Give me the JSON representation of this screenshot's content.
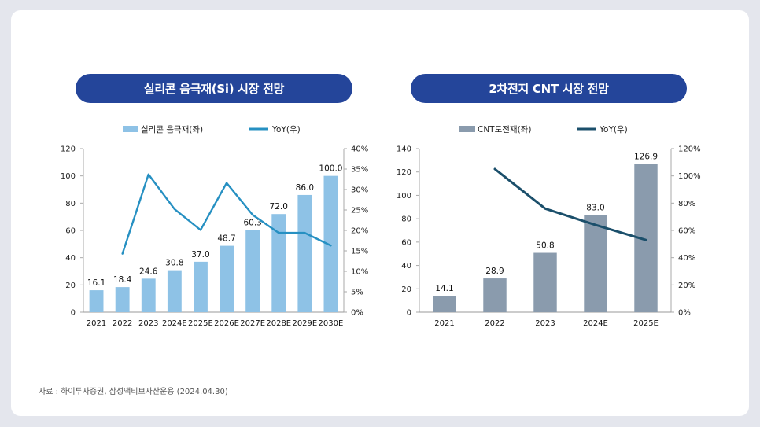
{
  "titles": {
    "left": "실리콘 음극재(Si) 시장 전망",
    "right": "2차전지 CNT 시장 전망"
  },
  "source": "자료 : 하이투자증권, 삼성액티브자산운용 (2024.04.30)",
  "colors": {
    "pill": "#24459a",
    "left_bar": "#8ec2e6",
    "left_line": "#2690c2",
    "right_bar": "#8a9bad",
    "right_line": "#1b4f6b"
  },
  "chart_data": [
    {
      "type": "bar",
      "title": "실리콘 음극재(Si) 시장 전망",
      "categories": [
        "2021",
        "2022",
        "2023",
        "2024E",
        "2025E",
        "2026E",
        "2027E",
        "2028E",
        "2029E",
        "2030E"
      ],
      "series": [
        {
          "name": "실리콘 음극재(좌)",
          "type": "bar",
          "axis": "left",
          "values": [
            16.1,
            18.4,
            24.6,
            30.8,
            37.0,
            48.7,
            60.3,
            72.0,
            86.0,
            100.0
          ],
          "labels": [
            "16.1",
            "18.4",
            "24.6",
            "30.8",
            "37.0",
            "48.7",
            "60.3",
            "72.0",
            "86.0",
            "100.0"
          ]
        },
        {
          "name": "YoY(우)",
          "type": "line",
          "axis": "right",
          "values": [
            null,
            14.3,
            33.7,
            25.2,
            20.1,
            31.6,
            23.8,
            19.4,
            19.4,
            16.3
          ]
        }
      ],
      "y_left": {
        "min": 0,
        "max": 120,
        "step": 20,
        "ticks": [
          "0",
          "20",
          "40",
          "60",
          "80",
          "100",
          "120"
        ]
      },
      "y_right": {
        "min": 0,
        "max": 40,
        "step": 5,
        "ticks": [
          "0%",
          "5%",
          "10%",
          "15%",
          "20%",
          "25%",
          "30%",
          "35%",
          "40%"
        ]
      },
      "legend_position": "top"
    },
    {
      "type": "bar",
      "title": "2차전지 CNT 시장 전망",
      "categories": [
        "2021",
        "2022",
        "2023",
        "2024E",
        "2025E"
      ],
      "series": [
        {
          "name": "CNT도전재(좌)",
          "type": "bar",
          "axis": "left",
          "values": [
            14.1,
            28.9,
            50.8,
            83.0,
            126.9
          ],
          "labels": [
            "14.1",
            "28.9",
            "50.8",
            "83.0",
            "126.9"
          ]
        },
        {
          "name": "YoY(우)",
          "type": "line",
          "axis": "right",
          "values": [
            null,
            105,
            76,
            64,
            53
          ]
        }
      ],
      "y_left": {
        "min": 0,
        "max": 140,
        "step": 20,
        "ticks": [
          "0",
          "20",
          "40",
          "60",
          "80",
          "100",
          "120",
          "140"
        ]
      },
      "y_right": {
        "min": 0,
        "max": 120,
        "step": 20,
        "ticks": [
          "0%",
          "20%",
          "40%",
          "60%",
          "80%",
          "100%",
          "120%"
        ]
      },
      "legend_position": "top"
    }
  ]
}
